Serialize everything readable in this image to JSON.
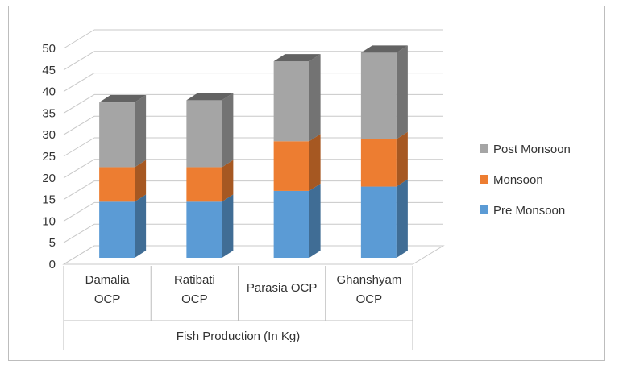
{
  "chart_data": {
    "type": "bar",
    "stacked": true,
    "three_d": true,
    "categories": [
      [
        "Damalia",
        "OCP"
      ],
      [
        "Ratibati",
        "OCP"
      ],
      [
        "Parasia OCP"
      ],
      [
        "Ghanshyam",
        "OCP"
      ]
    ],
    "group_label": "Fish Production (In Kg)",
    "series": [
      {
        "name": "Pre Monsoon",
        "color": "#5b9bd5",
        "values": [
          13,
          13,
          15.5,
          16.5
        ]
      },
      {
        "name": "Monsoon",
        "color": "#ed7d31",
        "values": [
          8,
          8,
          11.5,
          11
        ]
      },
      {
        "name": "Post Monsoon",
        "color": "#a5a5a5",
        "values": [
          15,
          15.5,
          18.5,
          20
        ]
      }
    ],
    "yticks": [
      0,
      5,
      10,
      15,
      20,
      25,
      30,
      35,
      40,
      45,
      50
    ],
    "ylim": [
      0,
      50
    ],
    "grid": true,
    "legend_position": "right",
    "legend_order": [
      "Post Monsoon",
      "Monsoon",
      "Pre Monsoon"
    ]
  }
}
